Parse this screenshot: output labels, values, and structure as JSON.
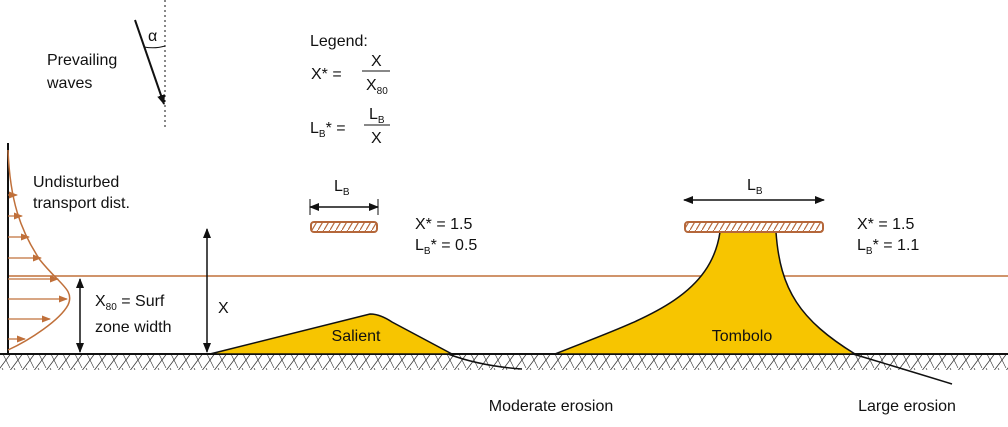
{
  "waves": {
    "angle": "α",
    "line1": "Prevailing",
    "line2": "waves"
  },
  "legend": {
    "title": "Legend:",
    "xstar": {
      "lhs": "X* =",
      "num": "X",
      "den": "X",
      "den_sub": "80"
    },
    "lbstar": {
      "lhs": "L",
      "lhs_sub": "B",
      "lhs_rest": "* =",
      "num": "L",
      "num_sub": "B",
      "den": "X"
    }
  },
  "transport": {
    "line1": "Undisturbed",
    "line2": "transport dist."
  },
  "surf_zone": {
    "sym": "X",
    "sym_sub": "80",
    "line1_rest": " = Surf",
    "line2": "zone width"
  },
  "x_label": "X",
  "salient": {
    "lb": "L",
    "lb_sub": "B",
    "xstar": "X* = 1.5",
    "lbstar": {
      "sym": "L",
      "sub": "B",
      "rest": "* = 0.5"
    },
    "name": "Salient",
    "erosion": "Moderate erosion"
  },
  "tombolo": {
    "lb": "L",
    "lb_sub": "B",
    "xstar": "X* = 1.5",
    "lbstar": {
      "sym": "L",
      "sub": "B",
      "rest": "* = 1.1"
    },
    "name": "Tombolo",
    "erosion": "Large erosion"
  }
}
